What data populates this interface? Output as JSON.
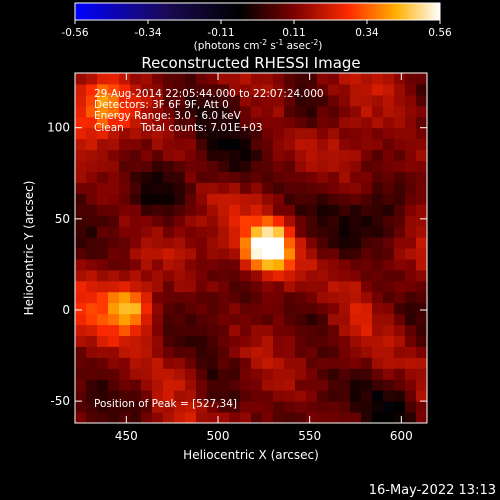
{
  "chart_data": {
    "type": "heatmap",
    "title": "Reconstructed RHESSI Image",
    "xlabel": "Heliocentric X (arcsec)",
    "ylabel": "Heliocentric Y (arcsec)",
    "xlim": [
      422,
      614
    ],
    "ylim": [
      -62,
      130
    ],
    "xticks": [
      450,
      500,
      550,
      600
    ],
    "yticks": [
      -50,
      0,
      50,
      100
    ],
    "colorbar": {
      "range": [
        -0.56,
        0.56
      ],
      "ticks": [
        "-0.56",
        "-0.34",
        "-0.11",
        "0.11",
        "0.34",
        "0.56"
      ],
      "label_main": "(photons cm",
      "label_sup1": "-2",
      "label_mid1": " s",
      "label_sup2": "-1",
      "label_mid2": " asec",
      "label_sup3": "-2",
      "label_end": ")"
    },
    "info_lines": [
      "29-Aug-2014 22:05:44.000 to 22:07:24.000",
      "Detectors: 3F 6F 9F, Att 0",
      "Energy Range: 3.0 - 6.0 keV",
      "Clean     Total counts: 7.01E+03"
    ],
    "peak_label": "Position of Peak = [527,34]",
    "peak": {
      "x": 527,
      "y": 34,
      "value": 0.56
    },
    "secondary_sources": [
      {
        "x": 452,
        "y": 2,
        "value": 0.3
      },
      {
        "x": 437,
        "y": 110,
        "value": 0.22
      }
    ]
  },
  "footer": {
    "timestamp": "16-May-2022 13:13"
  }
}
